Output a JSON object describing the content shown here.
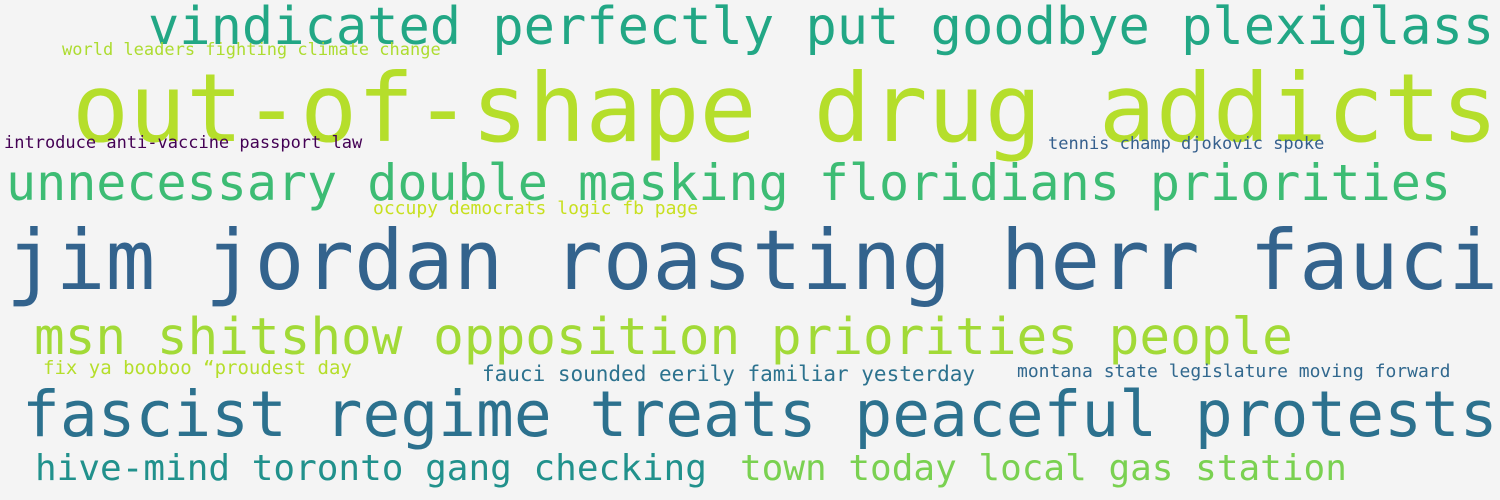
{
  "word_cloud": {
    "phrases": [
      {
        "text": "vindicated perfectly put goodbye plexiglass",
        "color": "#22a785"
      },
      {
        "text": "world leaders fighting climate change",
        "color": "#addc30"
      },
      {
        "text": "out-of-shape drug addicts",
        "color": "#b5de2b"
      },
      {
        "text": "introduce anti-vaccine passport law",
        "color": "#440154"
      },
      {
        "text": "tennis champ djokovic spoke",
        "color": "#355f8d"
      },
      {
        "text": "unnecessary double masking floridians priorities",
        "color": "#3dbc74"
      },
      {
        "text": "occupy democrats logic fb page",
        "color": "#c8e020"
      },
      {
        "text": "jim jordan roasting herr fauci",
        "color": "#33638d"
      },
      {
        "text": "msn shitshow opposition priorities people",
        "color": "#a2da37"
      },
      {
        "text": "fix ya booboo “proudest day",
        "color": "#b5de2b"
      },
      {
        "text": "fauci sounded eerily familiar yesterday",
        "color": "#2c728e"
      },
      {
        "text": "montana state legislature moving forward",
        "color": "#31688e"
      },
      {
        "text": "fascist regime treats peaceful protests",
        "color": "#2c718e"
      },
      {
        "text": "hive-mind toronto gang checking",
        "color": "#21918c"
      },
      {
        "text": "town today local gas station",
        "color": "#7ad151"
      }
    ]
  }
}
